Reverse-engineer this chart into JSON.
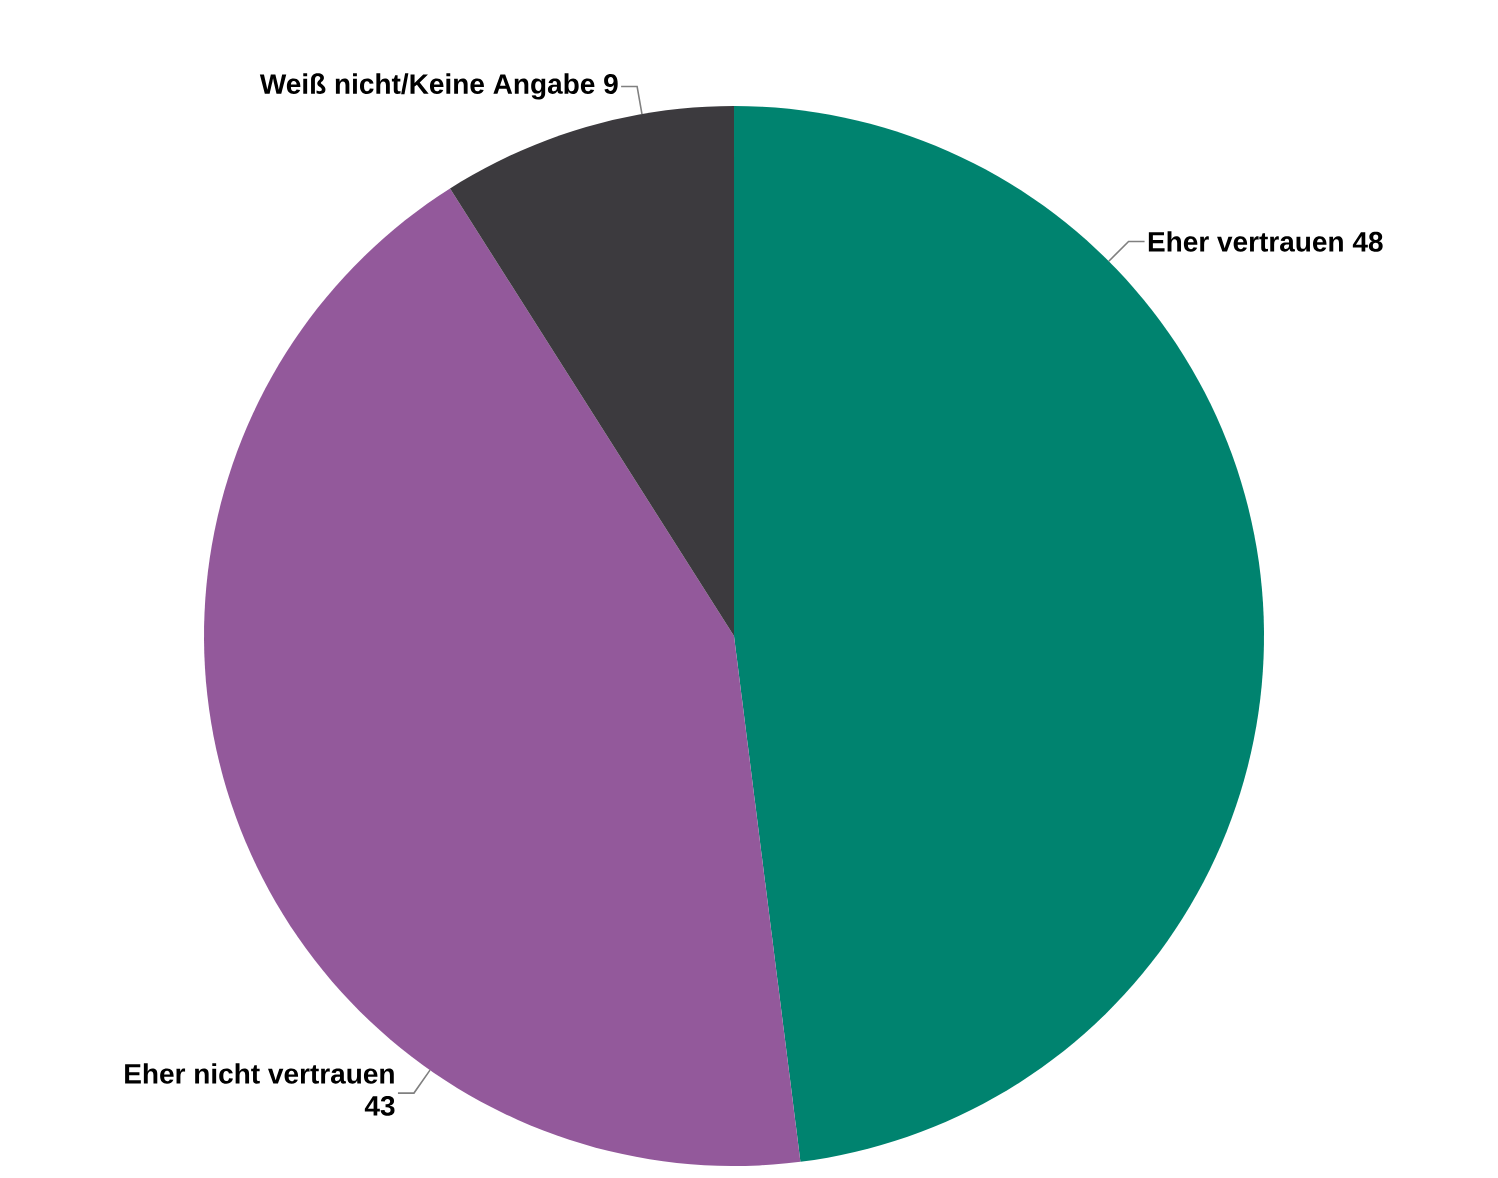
{
  "chart_data": {
    "type": "pie",
    "categories": [
      "Eher vertrauen",
      "Eher nicht vertrauen",
      "Weiß nicht/Keine Angabe"
    ],
    "values": [
      48,
      43,
      9
    ],
    "colors": [
      "#00836f",
      "#93599b",
      "#3c3a3e"
    ],
    "data_labels": true
  }
}
